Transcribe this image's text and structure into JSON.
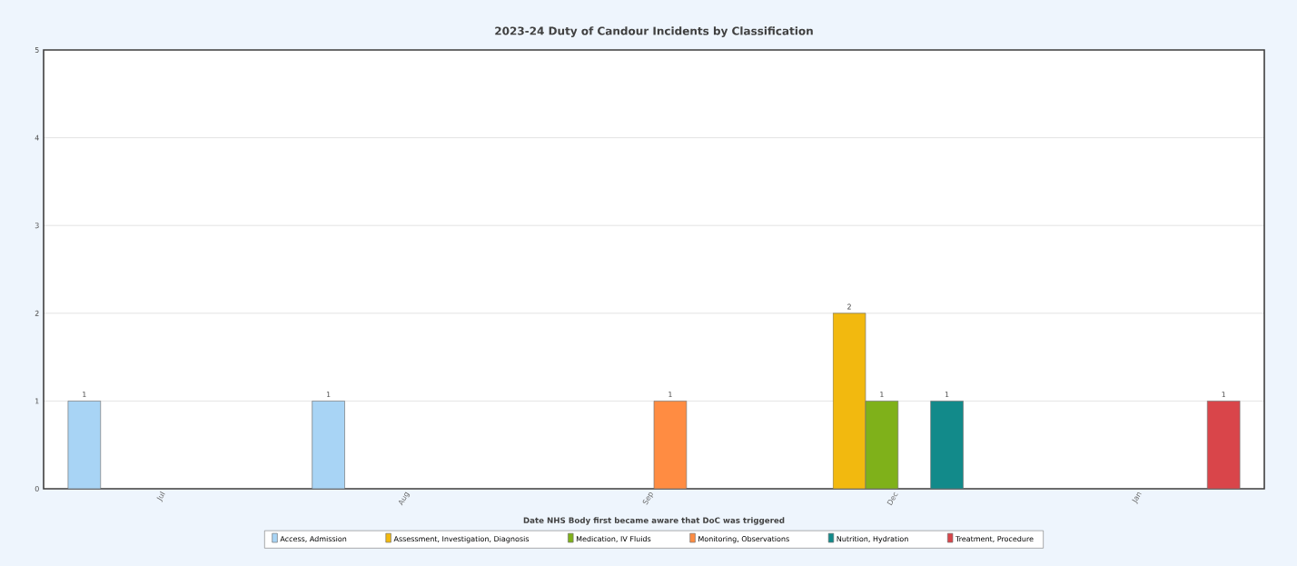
{
  "chart_data": {
    "type": "bar",
    "title": "2023-24 Duty of Candour Incidents by Classification",
    "xlabel": "Date NHS Body first became aware that DoC was triggered",
    "categories": [
      "Jul",
      "Aug",
      "Sep",
      "Dec",
      "Jan"
    ],
    "series": [
      {
        "name": "Access, Admission",
        "color": "#a8d4f5",
        "values": [
          1,
          1,
          null,
          null,
          null
        ]
      },
      {
        "name": "Assessment, Investigation, Diagnosis",
        "color": "#f2b90f",
        "values": [
          null,
          null,
          null,
          2,
          null
        ]
      },
      {
        "name": "Medication, IV Fluids",
        "color": "#7fb11a",
        "values": [
          null,
          null,
          null,
          1,
          null
        ]
      },
      {
        "name": "Monitoring, Observations",
        "color": "#ff8c42",
        "values": [
          null,
          null,
          1,
          null,
          null
        ]
      },
      {
        "name": "Nutrition, Hydration",
        "color": "#128a8a",
        "values": [
          null,
          null,
          null,
          1,
          null
        ]
      },
      {
        "name": "Treatment, Procedure",
        "color": "#d9454a",
        "values": [
          null,
          null,
          null,
          null,
          1
        ]
      }
    ],
    "ylim": [
      0,
      5
    ],
    "yticks": [
      0,
      1,
      2,
      3,
      4,
      5
    ],
    "grid": "y",
    "legend": "bottom",
    "data_labels": true
  }
}
